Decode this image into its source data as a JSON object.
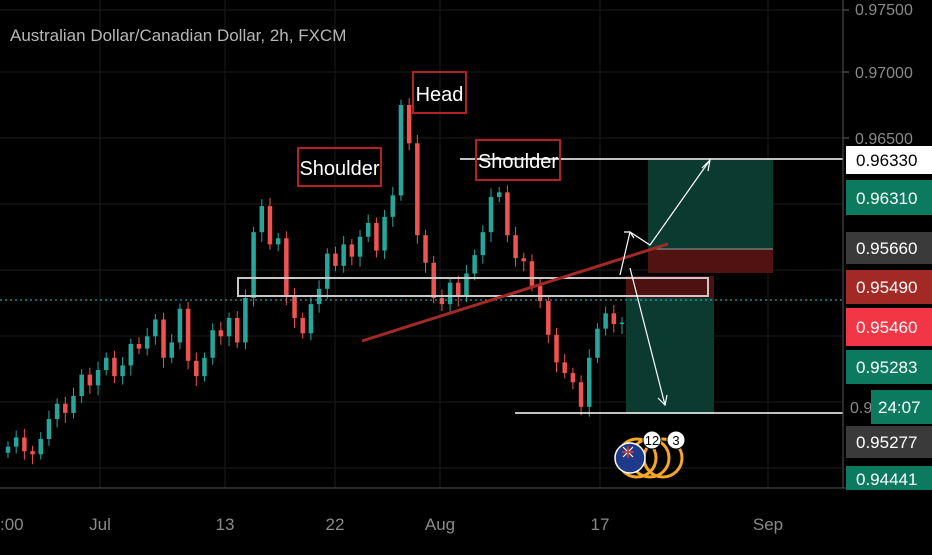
{
  "chart_data": {
    "type": "candlestick",
    "title": "Australian Dollar/Canadian Dollar, 2h, FXCM",
    "x_tick_labels": [
      ":00",
      "Jul",
      "13",
      "22",
      "Aug",
      "17",
      "Sep"
    ],
    "y_axis_labels": [
      "0.97500",
      "0.97000",
      "0.96500"
    ],
    "price_tags": [
      {
        "label": "0.96330",
        "color": "#ffffff"
      },
      {
        "label": "0.96310",
        "color": "#0b7a5f"
      },
      {
        "label": "0.95660",
        "color": "#3a3a3a"
      },
      {
        "label": "0.95490",
        "color": "#a32a24"
      },
      {
        "label": "0.95460",
        "color": "#f23645"
      },
      {
        "label": "0.95283",
        "color": "#0b7a5f"
      },
      {
        "label": "0.9",
        "color": "#000000"
      },
      {
        "label": "0.95277",
        "color": "#3a3a3a"
      },
      {
        "label": "0.94441",
        "color": "#0b7a5f"
      }
    ],
    "countdown": "24:07",
    "annotations": [
      {
        "label": "Shoulder"
      },
      {
        "label": "Head"
      },
      {
        "label": "Shoulder"
      }
    ],
    "event_badges": [
      "12",
      "3"
    ],
    "series": [
      {
        "name": "",
        "values": [
          0.9465,
          0.9471,
          0.9462,
          0.946,
          0.947,
          0.9483,
          0.9493,
          0.9487,
          0.9498,
          0.9512,
          0.9505,
          0.9515,
          0.9523,
          0.9511,
          0.9518,
          0.9532,
          0.9529,
          0.9537,
          0.9548,
          0.9523,
          0.9533,
          0.9555,
          0.9521,
          0.9511,
          0.9523,
          0.9541,
          0.9537,
          0.9549,
          0.9533,
          0.9562,
          0.9605,
          0.9622,
          0.9597,
          0.9601,
          0.9563,
          0.9549,
          0.9539,
          0.9558,
          0.9568,
          0.9591,
          0.9583,
          0.9597,
          0.9589,
          0.9602,
          0.9611,
          0.9593,
          0.9615,
          0.9629,
          0.9688,
          0.9663,
          0.9603,
          0.9585,
          0.9562,
          0.9558,
          0.9572,
          0.9563,
          0.9578,
          0.959,
          0.9605,
          0.9628,
          0.9631,
          0.9603,
          0.9588,
          0.9586,
          0.957,
          0.956,
          0.9538,
          0.952,
          0.9513,
          0.9507,
          0.9491,
          0.9523,
          0.9542,
          0.9552,
          0.9545,
          0.9546
        ]
      }
    ],
    "ylim": [
      0.9438,
      0.975
    ],
    "grid": true,
    "legend": "none"
  },
  "colors": {
    "up": "#26a69a",
    "down": "#ef5350",
    "grid": "#1c1c1c",
    "zone_green": "#0b3d33",
    "zone_red": "#5a1414"
  }
}
